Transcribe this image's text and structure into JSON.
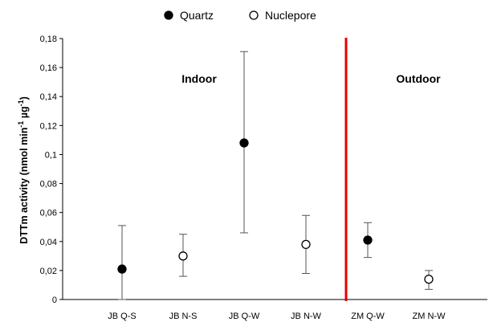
{
  "chart_data": {
    "type": "scatter",
    "ylabel": "DTTm activity (nmol min",
    "ylabel_sup1": "-1",
    "ylabel_mid": " µg",
    "ylabel_sup2": "-1",
    "ylabel_end": ")",
    "ylim": [
      0,
      0.18
    ],
    "yticks": [
      "0",
      "0,02",
      "0,04",
      "0,06",
      "0,08",
      "0,1",
      "0,12",
      "0,14",
      "0,16",
      "0,18"
    ],
    "categories": [
      "JB Q-S",
      "JB N-S",
      "JB Q-W",
      "JB N-W",
      "ZM Q-W",
      "ZM N-W"
    ],
    "series": [
      {
        "name": "Quartz",
        "marker": "filled-circle",
        "points": [
          {
            "category": "JB Q-S",
            "y": 0.021,
            "err_low": 0.0,
            "err_high": 0.051
          },
          {
            "category": "JB Q-W",
            "y": 0.108,
            "err_low": 0.046,
            "err_high": 0.171
          },
          {
            "category": "ZM Q-W",
            "y": 0.041,
            "err_low": 0.029,
            "err_high": 0.053
          }
        ]
      },
      {
        "name": "Nuclepore",
        "marker": "open-circle",
        "points": [
          {
            "category": "JB N-S",
            "y": 0.03,
            "err_low": 0.016,
            "err_high": 0.045
          },
          {
            "category": "JB N-W",
            "y": 0.038,
            "err_low": 0.018,
            "err_high": 0.058
          },
          {
            "category": "ZM N-W",
            "y": 0.014,
            "err_low": 0.007,
            "err_high": 0.02
          }
        ]
      }
    ],
    "regions": {
      "left": "Indoor",
      "right": "Outdoor"
    },
    "divider_color": "#e00000",
    "legend_placement": "top-center",
    "grid": false
  }
}
